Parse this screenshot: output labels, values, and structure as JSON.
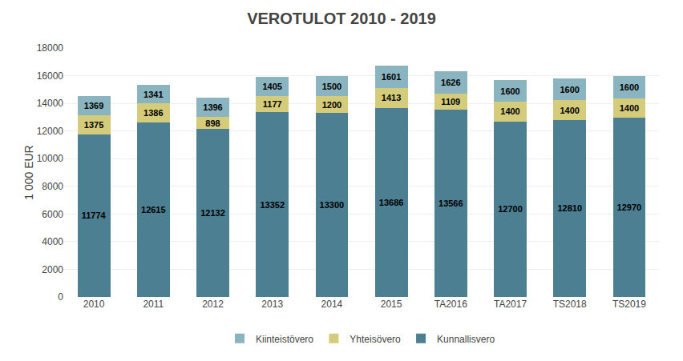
{
  "chart_data": {
    "type": "bar",
    "title": "VEROTULOT 2010 - 2019",
    "ylabel": "1 000 EUR",
    "categories": [
      "2010",
      "2011",
      "2012",
      "2013",
      "2014",
      "2015",
      "TA2016",
      "TA2017",
      "TS2018",
      "TS2019"
    ],
    "series": [
      {
        "name": "Kunnallisvero",
        "color": "#4d7f93",
        "values": [
          11774,
          12615,
          12132,
          13352,
          13300,
          13686,
          13566,
          12700,
          12810,
          12970
        ]
      },
      {
        "name": "Yhteisövero",
        "color": "#d4cc7a",
        "values": [
          1375,
          1386,
          898,
          1177,
          1200,
          1413,
          1109,
          1400,
          1400,
          1400
        ]
      },
      {
        "name": "Kiinteistövero",
        "color": "#8ab4bf",
        "values": [
          1369,
          1341,
          1396,
          1405,
          1500,
          1601,
          1626,
          1600,
          1600,
          1600
        ]
      }
    ],
    "ylim": [
      0,
      18000
    ],
    "yticks": [
      0,
      2000,
      4000,
      6000,
      8000,
      10000,
      12000,
      14000,
      16000,
      18000
    ],
    "stacked": true,
    "data_labels": true,
    "grid": true,
    "legend": "bottom"
  }
}
